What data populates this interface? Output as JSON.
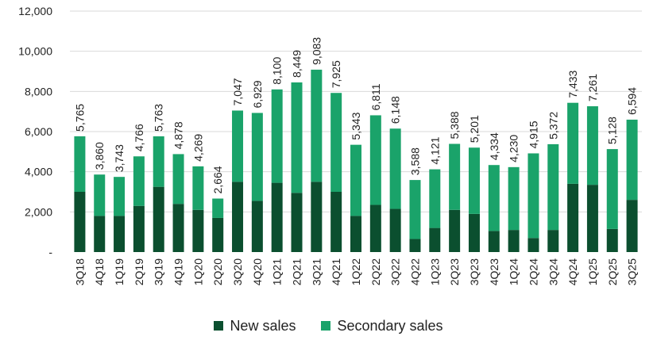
{
  "chart_data": {
    "type": "bar",
    "stacked": true,
    "categories": [
      "3Q18",
      "4Q18",
      "1Q19",
      "2Q19",
      "3Q19",
      "4Q19",
      "1Q20",
      "2Q20",
      "3Q20",
      "4Q20",
      "1Q21",
      "2Q21",
      "3Q21",
      "4Q21",
      "1Q22",
      "2Q22",
      "3Q22",
      "4Q22",
      "1Q23",
      "2Q23",
      "3Q23",
      "4Q23",
      "1Q24",
      "2Q24",
      "3Q24",
      "4Q24",
      "1Q25",
      "2Q25",
      "3Q25"
    ],
    "series": [
      {
        "name": "New sales",
        "color": "#0b4f2f",
        "values": [
          3000,
          1800,
          1800,
          2300,
          3250,
          2400,
          2100,
          1700,
          3500,
          2550,
          3450,
          2950,
          3500,
          3000,
          1800,
          2350,
          2150,
          650,
          1200,
          2100,
          1900,
          1050,
          1100,
          700,
          1100,
          3400,
          3350,
          1150,
          2600
        ]
      },
      {
        "name": "Secondary sales",
        "color": "#1aa36a",
        "values": [
          2765,
          2060,
          1943,
          2466,
          2513,
          2478,
          2169,
          964,
          3547,
          4379,
          4650,
          5499,
          5583,
          4925,
          3543,
          4461,
          3998,
          2938,
          2921,
          3288,
          3301,
          3284,
          3130,
          4215,
          4272,
          4033,
          3911,
          3978,
          3994
        ]
      }
    ],
    "totals": [
      "5,765",
      "3,860",
      "3,743",
      "4,766",
      "5,763",
      "4,878",
      "4,269",
      "2,664",
      "7,047",
      "6,929",
      "8,100",
      "8,449",
      "9,083",
      "7,925",
      "5,343",
      "6,811",
      "6,148",
      "3,588",
      "4,121",
      "5,388",
      "5,201",
      "4,334",
      "4,230",
      "4,915",
      "5,372",
      "7,433",
      "7,261",
      "5,128",
      "6,594"
    ],
    "ylim": [
      0,
      12000
    ],
    "yticks": [
      0,
      2000,
      4000,
      6000,
      8000,
      10000,
      12000
    ],
    "ytick_labels": [
      "-",
      "2,000",
      "4,000",
      "6,000",
      "8,000",
      "10,000",
      "12,000"
    ],
    "title": "",
    "xlabel": "",
    "ylabel": "",
    "grid": true,
    "legend_position": "bottom-center"
  }
}
